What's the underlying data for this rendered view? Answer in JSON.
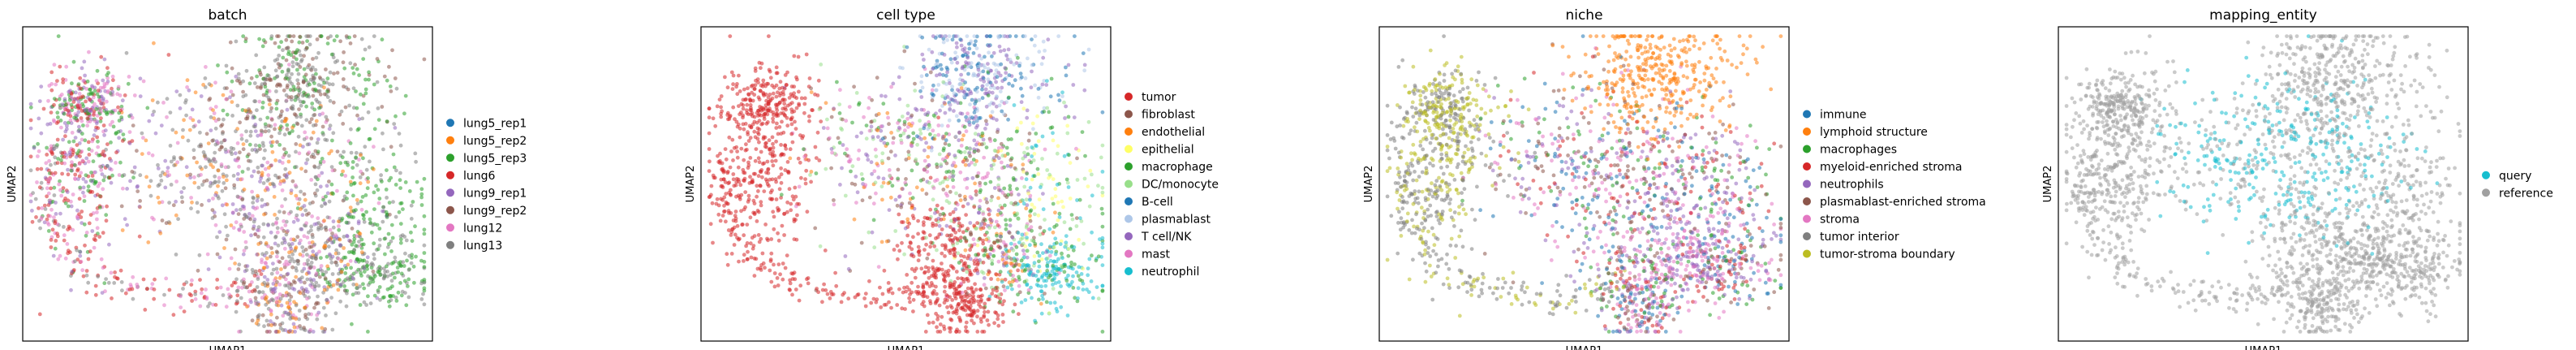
{
  "chart_data": [
    {
      "type": "scatter",
      "title": "batch",
      "xlabel": "UMAP1",
      "ylabel": "UMAP2",
      "grid": false,
      "legend_placement": "right",
      "legend": [
        {
          "label": "lung5_rep1",
          "color": "#1f77b4"
        },
        {
          "label": "lung5_rep2",
          "color": "#ff7f0e"
        },
        {
          "label": "lung5_rep3",
          "color": "#2ca02c"
        },
        {
          "label": "lung6",
          "color": "#d62728"
        },
        {
          "label": "lung9_rep1",
          "color": "#9467bd"
        },
        {
          "label": "lung9_rep2",
          "color": "#8c564b"
        },
        {
          "label": "lung12",
          "color": "#e377c2"
        },
        {
          "label": "lung13",
          "color": "#7f7f7f"
        }
      ]
    },
    {
      "type": "scatter",
      "title": "cell type",
      "xlabel": "UMAP1",
      "ylabel": "UMAP2",
      "grid": false,
      "legend_placement": "right",
      "legend": [
        {
          "label": "tumor",
          "color": "#d62728"
        },
        {
          "label": "fibroblast",
          "color": "#8c564b"
        },
        {
          "label": "endothelial",
          "color": "#ff7f0e"
        },
        {
          "label": "epithelial",
          "color": "#ffff66"
        },
        {
          "label": "macrophage",
          "color": "#2ca02c"
        },
        {
          "label": "DC/monocyte",
          "color": "#98df8a"
        },
        {
          "label": "B-cell",
          "color": "#1f77b4"
        },
        {
          "label": "plasmablast",
          "color": "#aec7e8"
        },
        {
          "label": "T cell/NK",
          "color": "#9467bd"
        },
        {
          "label": "mast",
          "color": "#e377c2"
        },
        {
          "label": "neutrophil",
          "color": "#17becf"
        }
      ]
    },
    {
      "type": "scatter",
      "title": "niche",
      "xlabel": "UMAP1",
      "ylabel": "UMAP2",
      "grid": false,
      "legend_placement": "right",
      "legend": [
        {
          "label": "immune",
          "color": "#1f77b4"
        },
        {
          "label": "lymphoid structure",
          "color": "#ff7f0e"
        },
        {
          "label": "macrophages",
          "color": "#2ca02c"
        },
        {
          "label": "myeloid-enriched stroma",
          "color": "#d62728"
        },
        {
          "label": "neutrophils",
          "color": "#9467bd"
        },
        {
          "label": "plasmablast-enriched stroma",
          "color": "#8c564b"
        },
        {
          "label": "stroma",
          "color": "#e377c2"
        },
        {
          "label": "tumor interior",
          "color": "#7f7f7f"
        },
        {
          "label": "tumor-stroma boundary",
          "color": "#bcbd22"
        }
      ]
    },
    {
      "type": "scatter",
      "title": "mapping_entity",
      "xlabel": "UMAP1",
      "ylabel": "UMAP2",
      "grid": false,
      "legend_placement": "right",
      "legend": [
        {
          "label": "query",
          "color": "#17becf"
        },
        {
          "label": "reference",
          "color": "#a0a0a0"
        }
      ]
    }
  ]
}
